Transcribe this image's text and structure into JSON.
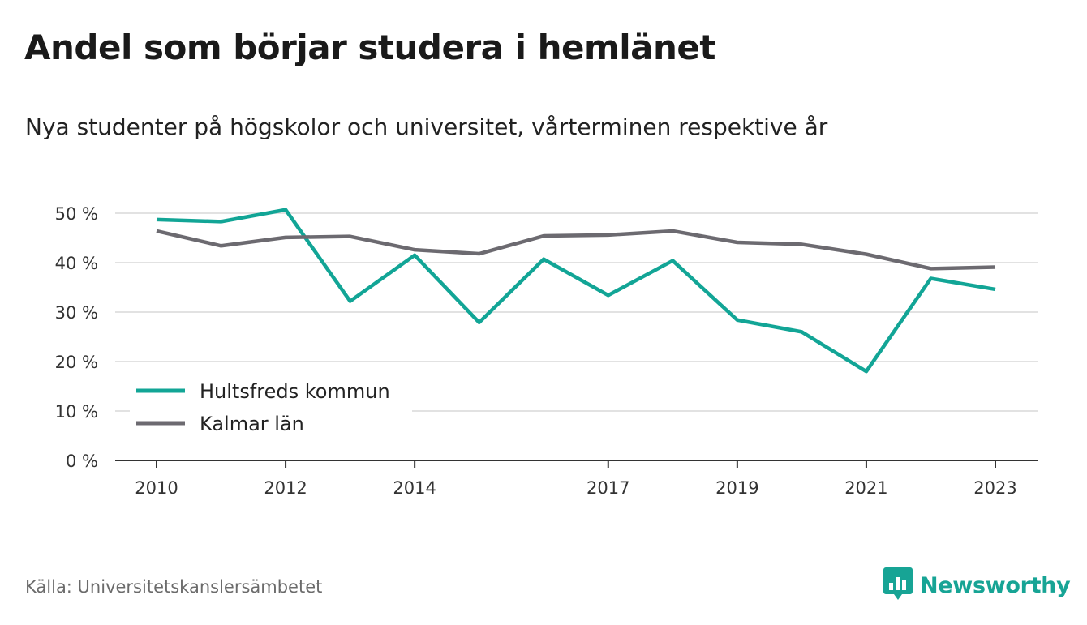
{
  "header": {
    "title": "Andel som börjar studera i hemlänet",
    "subtitle": "Nya studenter på högskolor och universitet, vårterminen respektive år"
  },
  "footer": {
    "source": "Källa: Universitetskanslersämbetet",
    "brand": "Newsworthy",
    "brand_icon": "bar-chart-speech-bubble-icon",
    "brand_color": "#17a495"
  },
  "chart_data": {
    "type": "line",
    "title": "Andel som börjar studera i hemlänet",
    "subtitle": "Nya studenter på högskolor och universitet, vårterminen respektive år",
    "xlabel": "",
    "ylabel": "",
    "x": [
      2010,
      2011,
      2012,
      2013,
      2014,
      2015,
      2016,
      2017,
      2018,
      2019,
      2020,
      2021,
      2022,
      2023
    ],
    "x_tick_labels": [
      "2010",
      "2012",
      "2014",
      "2017",
      "2019",
      "2021",
      "2023"
    ],
    "ylim": [
      0,
      50
    ],
    "y_ticks": [
      0,
      10,
      20,
      30,
      40,
      50
    ],
    "y_tick_labels": [
      "0 %",
      "10 %",
      "20 %",
      "30 %",
      "40 %",
      "50 %"
    ],
    "grid": true,
    "legend_position": "bottom-left",
    "series": [
      {
        "name": "Hultsfreds kommun",
        "color": "#12a596",
        "values": [
          48.7,
          48.3,
          50.7,
          32.2,
          41.5,
          27.9,
          40.7,
          33.4,
          40.4,
          28.4,
          26.0,
          18.0,
          36.8,
          34.6
        ]
      },
      {
        "name": "Kalmar län",
        "color": "#6c6a70",
        "values": [
          46.4,
          43.4,
          45.1,
          45.3,
          42.6,
          41.8,
          45.4,
          45.6,
          46.4,
          44.1,
          43.7,
          41.7,
          38.8,
          39.1
        ]
      }
    ]
  }
}
